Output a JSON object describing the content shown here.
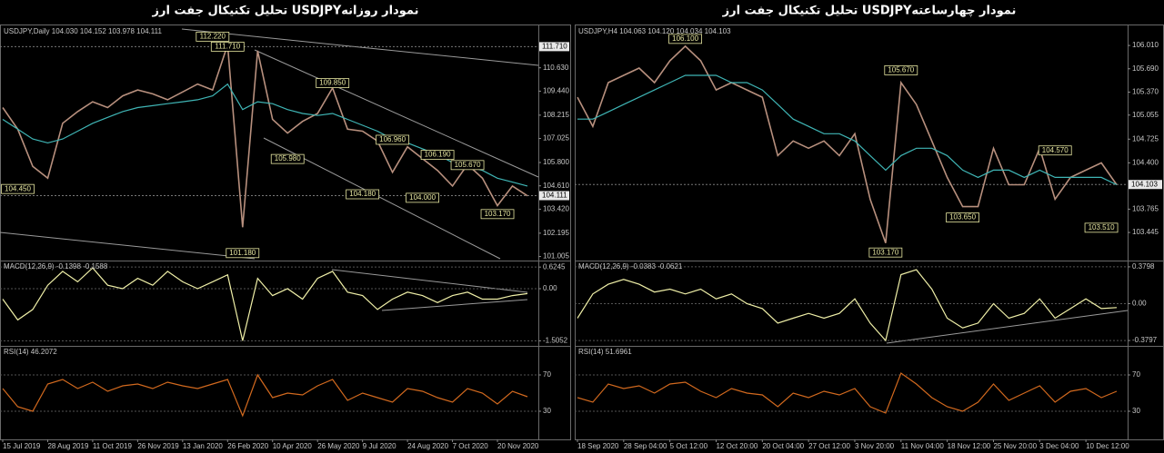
{
  "chart_data": [
    {
      "type": "line",
      "heading": "تحلیل تکنیکال جفت ارز  USDJPYنمودار روزانه",
      "title": "USDJPY,Daily  104.030 104.152 103.978 104.111",
      "categories": [
        "15 Jul 2019",
        null,
        null,
        "28 Aug 2019",
        null,
        null,
        "11 Oct 2019",
        null,
        null,
        "26 Nov 2019",
        null,
        null,
        "13 Jan 2020",
        null,
        null,
        "26 Feb 2020",
        null,
        null,
        "10 Apr 2020",
        null,
        null,
        "26 May 2020",
        null,
        null,
        "9 Jul 2020",
        null,
        null,
        "24 Aug 2020",
        null,
        null,
        "7 Oct 2020",
        null,
        null,
        "20 Nov 2020",
        null,
        null
      ],
      "series": [
        {
          "color": "#b8907e",
          "values": [
            108.6,
            107.5,
            105.6,
            105.0,
            107.8,
            108.4,
            108.9,
            108.6,
            109.2,
            109.5,
            109.3,
            109.0,
            109.4,
            109.8,
            109.5,
            111.8,
            102.5,
            111.5,
            108.0,
            107.3,
            107.9,
            108.3,
            109.6,
            107.5,
            107.4,
            106.9,
            105.3,
            106.6,
            106.0,
            105.4,
            104.6,
            105.7,
            105.0,
            103.6,
            104.6,
            104.1
          ]
        },
        {
          "color": "#3fb5b5",
          "values": [
            108.0,
            107.5,
            107.0,
            106.8,
            107.0,
            107.4,
            107.8,
            108.1,
            108.4,
            108.6,
            108.7,
            108.8,
            108.9,
            109.0,
            109.2,
            109.8,
            108.5,
            108.9,
            108.8,
            108.5,
            108.3,
            108.2,
            108.3,
            108.0,
            107.7,
            107.4,
            107.0,
            106.8,
            106.5,
            106.2,
            105.8,
            105.6,
            105.4,
            105.0,
            104.8,
            104.6
          ]
        }
      ],
      "ylim": [
        100.8,
        112.7
      ],
      "yticks": [
        {
          "value": 110.63,
          "label": "110.630"
        },
        {
          "value": 109.44,
          "label": "109.440"
        },
        108.215,
        107.025,
        {
          "value": 105.8,
          "label": "105.800"
        },
        {
          "value": 104.61,
          "label": "104.610"
        },
        {
          "value": 103.42,
          "label": "103.420"
        },
        102.195,
        101.005
      ],
      "levels": [
        {
          "value": 111.71,
          "label": "111.710"
        },
        104.111
      ],
      "annotations": [
        {
          "value": 112.22,
          "label": "112.220"
        },
        {
          "value": 111.71,
          "label": "111.710"
        },
        {
          "value": 109.85,
          "label": "109.850"
        },
        {
          "value": 106.96,
          "label": "106.960"
        },
        {
          "value": 106.19,
          "label": "106.190"
        },
        {
          "value": 105.67,
          "label": "105.670"
        },
        {
          "value": 105.98,
          "label": "105.980"
        },
        {
          "value": 104.45,
          "label": "104.450"
        },
        {
          "value": 104.18,
          "label": "104.180"
        },
        {
          "value": 104,
          "label": "104.000"
        },
        {
          "value": 103.17,
          "label": "103.170"
        },
        {
          "value": 101.18,
          "label": "101.180"
        }
      ]
    },
    {
      "type": "line",
      "title": "MACD(12,26,9) -0.1398 -0.1588",
      "series": [
        {
          "color": "#f0f0a8",
          "values": [
            -0.3,
            -0.9,
            -0.6,
            0.1,
            0.5,
            0.2,
            0.6,
            0.1,
            0.0,
            0.3,
            0.1,
            0.5,
            0.2,
            0.0,
            0.2,
            0.4,
            -1.5,
            0.3,
            -0.2,
            0.0,
            -0.3,
            0.3,
            0.5,
            -0.1,
            -0.2,
            -0.6,
            -0.3,
            -0.1,
            -0.2,
            -0.4,
            -0.2,
            -0.1,
            -0.3,
            -0.3,
            -0.2,
            -0.14
          ]
        }
      ],
      "ylim": [
        -1.65,
        0.76
      ],
      "yticks": [
        0.6245,
        {
          "value": 0,
          "label": "0.00"
        },
        -1.5052
      ],
      "grid": true
    },
    {
      "type": "line",
      "title": "RSI(14) 46.2072",
      "series": [
        {
          "color": "#d2691e",
          "values": [
            55,
            35,
            30,
            60,
            65,
            55,
            62,
            52,
            58,
            60,
            55,
            62,
            58,
            55,
            60,
            65,
            25,
            70,
            45,
            50,
            48,
            58,
            65,
            42,
            50,
            45,
            40,
            55,
            52,
            45,
            40,
            55,
            50,
            38,
            52,
            46
          ]
        }
      ],
      "ylim": [
        0,
        100
      ],
      "yticks": [
        70,
        30
      ],
      "grid": true
    },
    {
      "type": "line",
      "heading": "تحلیل تکنیکال جفت ارز  USDJPYنمودار چهارساعته",
      "title": "USDJPY,H4  104.063 104.120 104.034 104.103",
      "categories": [
        "18 Sep 2020",
        null,
        null,
        "28 Sep 04:00",
        null,
        null,
        "5 Oct 12:00",
        null,
        null,
        "12 Oct 20:00",
        null,
        null,
        "20 Oct 04:00",
        null,
        null,
        "27 Oct 12:00",
        null,
        null,
        "3 Nov 20:00",
        null,
        null,
        "11 Nov 04:00",
        null,
        null,
        "18 Nov 12:00",
        null,
        null,
        "25 Nov 20:00",
        null,
        null,
        "3 Dec 04:00",
        null,
        null,
        "10 Dec 12:00",
        null,
        null
      ],
      "series": [
        {
          "color": "#b8907e",
          "values": [
            105.3,
            104.9,
            105.5,
            105.6,
            105.7,
            105.5,
            105.8,
            106.0,
            105.8,
            105.4,
            105.5,
            105.4,
            105.3,
            104.5,
            104.7,
            104.6,
            104.7,
            104.5,
            104.8,
            103.9,
            103.3,
            105.5,
            105.2,
            104.7,
            104.2,
            103.8,
            103.8,
            104.6,
            104.1,
            104.1,
            104.6,
            103.9,
            104.2,
            104.3,
            104.4,
            104.1
          ]
        },
        {
          "color": "#3fb5b5",
          "values": [
            105.0,
            105.0,
            105.1,
            105.2,
            105.3,
            105.4,
            105.5,
            105.6,
            105.6,
            105.6,
            105.5,
            105.5,
            105.4,
            105.2,
            105.0,
            104.9,
            104.8,
            104.8,
            104.7,
            104.5,
            104.3,
            104.5,
            104.6,
            104.6,
            104.5,
            104.3,
            104.2,
            104.3,
            104.3,
            104.2,
            104.3,
            104.2,
            104.2,
            104.2,
            104.2,
            104.1
          ]
        }
      ],
      "ylim": [
        103.06,
        106.26
      ],
      "yticks": [
        {
          "value": 106.01,
          "label": "106.010"
        },
        {
          "value": 105.69,
          "label": "105.690"
        },
        {
          "value": 105.37,
          "label": "105.370"
        },
        105.055,
        104.725,
        {
          "value": 104.4,
          "label": "104.400"
        },
        103.765,
        103.445
      ],
      "levels": [
        104.103
      ],
      "annotations": [
        {
          "value": 106.1,
          "label": "106.100"
        },
        {
          "value": 105.67,
          "label": "105.670"
        },
        {
          "value": 104.57,
          "label": "104.570"
        },
        {
          "value": 103.65,
          "label": "103.650"
        },
        {
          "value": 103.51,
          "label": "103.510"
        },
        {
          "value": 103.17,
          "label": "103.170"
        }
      ]
    },
    {
      "type": "line",
      "title": "MACD(12,26,9) -0.0383 -0.0621",
      "series": [
        {
          "color": "#f0f0a8",
          "values": [
            -0.15,
            0.1,
            0.2,
            0.25,
            0.2,
            0.12,
            0.15,
            0.1,
            0.15,
            0.05,
            0.1,
            0.0,
            -0.05,
            -0.2,
            -0.15,
            -0.1,
            -0.15,
            -0.1,
            0.05,
            -0.2,
            -0.38,
            0.3,
            0.35,
            0.15,
            -0.15,
            -0.25,
            -0.2,
            0.0,
            -0.15,
            -0.1,
            0.05,
            -0.15,
            -0.05,
            0.05,
            -0.05,
            -0.04
          ]
        }
      ],
      "ylim": [
        -0.435,
        0.426
      ],
      "yticks": [
        0.3798,
        {
          "value": 0,
          "label": "0.00"
        },
        -0.3797
      ],
      "grid": true
    },
    {
      "type": "line",
      "title": "RSI(14) 51.6961",
      "series": [
        {
          "color": "#d2691e",
          "values": [
            45,
            40,
            60,
            55,
            58,
            50,
            60,
            62,
            52,
            45,
            55,
            50,
            48,
            35,
            50,
            45,
            52,
            48,
            55,
            35,
            28,
            72,
            60,
            45,
            35,
            30,
            40,
            60,
            42,
            50,
            58,
            40,
            52,
            55,
            45,
            52
          ]
        }
      ],
      "ylim": [
        0,
        100
      ],
      "yticks": [
        70,
        30
      ],
      "grid": true
    }
  ]
}
